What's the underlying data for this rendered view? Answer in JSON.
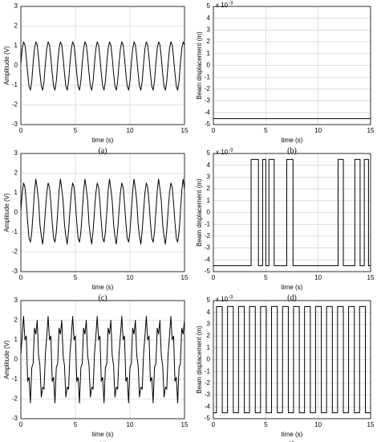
{
  "chart_data": [
    {
      "type": "line",
      "caption": "(a)",
      "x_label": "time (s)",
      "y_label": "Amplitude (V)",
      "xlim": [
        0,
        15
      ],
      "xticks": [
        0,
        5,
        10,
        15
      ],
      "ylim": [
        -3,
        3
      ],
      "yticks": [
        -3,
        -2,
        -1,
        0,
        1,
        2,
        3
      ],
      "grid": true,
      "x": [
        0,
        0.125,
        0.25,
        0.375,
        0.5,
        0.625,
        0.75,
        0.875,
        1,
        1.125,
        1.25,
        1.375,
        1.5,
        1.625,
        1.75,
        1.875,
        2,
        2.125,
        2.25,
        2.375,
        2.5,
        2.625,
        2.75,
        2.875,
        3,
        3.125,
        3.25,
        3.375,
        3.5,
        3.625,
        3.75,
        3.875,
        4,
        4.125,
        4.25,
        4.375,
        4.5,
        4.625,
        4.75,
        4.875,
        5,
        5.125,
        5.25,
        5.375,
        5.5,
        5.625,
        5.75,
        5.875,
        6,
        6.125,
        6.25,
        6.375,
        6.5,
        6.625,
        6.75,
        6.875,
        7,
        7.125,
        7.25,
        7.375,
        7.5,
        7.625,
        7.75,
        7.875,
        8,
        8.125,
        8.25,
        8.375,
        8.5,
        8.625,
        8.75,
        8.875,
        9,
        9.125,
        9.25,
        9.375,
        9.5,
        9.625,
        9.75,
        9.875,
        10,
        10.125,
        10.25,
        10.375,
        10.5,
        10.625,
        10.75,
        10.875,
        11,
        11.125,
        11.25,
        11.375,
        11.5,
        11.625,
        11.75,
        11.875,
        12,
        12.125,
        12.25,
        12.375,
        12.5,
        12.625,
        12.75,
        12.875,
        13,
        13.125,
        13.25,
        13.375,
        13.5,
        13.625,
        13.75,
        13.875,
        14,
        14.125,
        14.25,
        14.375,
        14.5,
        14.625,
        14.75,
        14.875,
        15
      ],
      "series": [
        {
          "color": "#000000",
          "values": [
            0.1,
            0.85,
            1.2,
            1.05,
            0.4,
            -0.4,
            -1.05,
            -1.25,
            -0.8,
            0.1,
            0.85,
            1.2,
            1.05,
            0.4,
            -0.4,
            -1.05,
            -1.25,
            -0.8,
            0.1,
            0.85,
            1.2,
            1.05,
            0.4,
            -0.4,
            -1.05,
            -1.25,
            -0.8,
            0.1,
            0.85,
            1.2,
            1.05,
            0.4,
            -0.4,
            -1.05,
            -1.25,
            -0.8,
            0.1,
            0.85,
            1.2,
            1.05,
            0.4,
            -0.4,
            -1.05,
            -1.25,
            -0.8,
            0.1,
            0.85,
            1.2,
            1.05,
            0.4,
            -0.4,
            -1.05,
            -1.25,
            -0.8,
            0.1,
            0.85,
            1.2,
            1.05,
            0.4,
            -0.4,
            -1.05,
            -1.25,
            -0.8,
            0.1,
            0.85,
            1.2,
            1.05,
            0.4,
            -0.4,
            -1.05,
            -1.25,
            -0.8,
            0.1,
            0.85,
            1.2,
            1.05,
            0.4,
            -0.4,
            -1.05,
            -1.25,
            -0.8,
            0.1,
            0.85,
            1.2,
            1.05,
            0.4,
            -0.4,
            -1.05,
            -1.25,
            -0.8,
            0.1,
            0.85,
            1.2,
            1.05,
            0.4,
            -0.4,
            -1.05,
            -1.25,
            -0.8,
            0.1,
            0.85,
            1.2,
            1.05,
            0.4,
            -0.4,
            -1.05,
            -1.25,
            -0.8,
            0.1,
            0.85,
            1.2,
            1.05,
            0.4,
            -0.4,
            -1.05,
            -1.25,
            -0.8,
            0.1,
            0.85,
            1.2,
            1.05
          ]
        }
      ]
    },
    {
      "type": "line",
      "caption": "(b)",
      "x_label": "time (s)",
      "y_label": "Beam displacement (m)",
      "y_multiplier": "x 10",
      "y_multiplier_exp": "-3",
      "xlim": [
        0,
        15
      ],
      "xticks": [
        0,
        5,
        10,
        15
      ],
      "ylim": [
        -5,
        5
      ],
      "yticks": [
        -5,
        -4,
        -3,
        -2,
        -1,
        0,
        1,
        2,
        3,
        4,
        5
      ],
      "grid": true,
      "x": [
        0,
        15
      ],
      "series": [
        {
          "color": "#000000",
          "values": [
            -4.5,
            -4.5
          ]
        }
      ]
    },
    {
      "type": "line",
      "caption": "(c)",
      "x_label": "time (s)",
      "y_label": "Amplitude (V)",
      "xlim": [
        0,
        15
      ],
      "xticks": [
        0,
        5,
        10,
        15
      ],
      "ylim": [
        -3,
        3
      ],
      "yticks": [
        -3,
        -2,
        -1,
        0,
        1,
        2,
        3
      ],
      "grid": true,
      "x": [
        0,
        0.125,
        0.25,
        0.375,
        0.5,
        0.625,
        0.75,
        0.875,
        1,
        1.125,
        1.25,
        1.375,
        1.5,
        1.625,
        1.75,
        1.875,
        2,
        2.125,
        2.25,
        2.375,
        2.5,
        2.625,
        2.75,
        2.875,
        3,
        3.125,
        3.25,
        3.375,
        3.5,
        3.625,
        3.75,
        3.875,
        4,
        4.125,
        4.25,
        4.375,
        4.5,
        4.625,
        4.75,
        4.875,
        5,
        5.125,
        5.25,
        5.375,
        5.5,
        5.625,
        5.75,
        5.875,
        6,
        6.125,
        6.25,
        6.375,
        6.5,
        6.625,
        6.75,
        6.875,
        7,
        7.125,
        7.25,
        7.375,
        7.5,
        7.625,
        7.75,
        7.875,
        8,
        8.125,
        8.25,
        8.375,
        8.5,
        8.625,
        8.75,
        8.875,
        9,
        9.125,
        9.25,
        9.375,
        9.5,
        9.625,
        9.75,
        9.875,
        10,
        10.125,
        10.25,
        10.375,
        10.5,
        10.625,
        10.75,
        10.875,
        11,
        11.125,
        11.25,
        11.375,
        11.5,
        11.625,
        11.75,
        11.875,
        12,
        12.125,
        12.25,
        12.375,
        12.5,
        12.625,
        12.75,
        12.875,
        13,
        13.125,
        13.25,
        13.375,
        13.5,
        13.625,
        13.75,
        13.875,
        14,
        14.125,
        14.25,
        14.375,
        14.5,
        14.625,
        14.75,
        14.875,
        15
      ],
      "series": [
        {
          "color": "#000000",
          "values": [
            0.1,
            1.0,
            1.5,
            1.3,
            0.5,
            -0.5,
            -1.3,
            -1.5,
            -1.0,
            0.0,
            1.1,
            1.7,
            1.2,
            0.6,
            -0.6,
            -1.2,
            -1.6,
            -0.9,
            0.1,
            1.0,
            1.5,
            1.3,
            0.5,
            -0.5,
            -1.3,
            -1.5,
            -1.0,
            0.0,
            1.1,
            1.7,
            1.2,
            0.6,
            -0.6,
            -1.2,
            -1.6,
            -0.9,
            0.1,
            1.0,
            1.5,
            1.3,
            0.5,
            -0.5,
            -1.3,
            -1.5,
            -1.0,
            0.0,
            1.1,
            1.7,
            1.2,
            0.6,
            -0.6,
            -1.2,
            -1.6,
            -0.9,
            0.1,
            1.0,
            1.5,
            1.3,
            0.5,
            -0.5,
            -1.3,
            -1.5,
            -1.0,
            0.0,
            1.1,
            1.7,
            1.2,
            0.6,
            -0.6,
            -1.2,
            -1.6,
            -0.9,
            0.1,
            1.0,
            1.5,
            1.3,
            0.5,
            -0.5,
            -1.3,
            -1.5,
            -1.0,
            0.0,
            1.1,
            1.7,
            1.2,
            0.6,
            -0.6,
            -1.2,
            -1.6,
            -0.9,
            0.1,
            1.0,
            1.5,
            1.3,
            0.5,
            -0.5,
            -1.3,
            -1.5,
            -1.0,
            0.0,
            1.1,
            1.7,
            1.2,
            0.6,
            -0.6,
            -1.2,
            -1.6,
            -0.9,
            0.1,
            1.0,
            1.5,
            1.3,
            0.5,
            -0.5,
            -1.3,
            -1.5,
            -1.0,
            0.0,
            1.1,
            1.7,
            1.2
          ]
        }
      ]
    },
    {
      "type": "line",
      "caption": "(d)",
      "x_label": "time (s)",
      "y_label": "Beam displacement (m)",
      "y_multiplier": "x 10",
      "y_multiplier_exp": "-3",
      "xlim": [
        0,
        15
      ],
      "xticks": [
        0,
        5,
        10,
        15
      ],
      "ylim": [
        -5,
        5
      ],
      "yticks": [
        -5,
        -4,
        -3,
        -2,
        -1,
        0,
        1,
        2,
        3,
        4,
        5
      ],
      "grid": true,
      "x": [
        0,
        3.6,
        3.6,
        4.3,
        4.3,
        4.7,
        4.7,
        5.0,
        5.0,
        5.3,
        5.3,
        5.8,
        5.8,
        7.0,
        7.0,
        7.6,
        7.6,
        11.9,
        11.9,
        12.4,
        12.4,
        13.5,
        13.5,
        14.0,
        14.0,
        14.4,
        14.4,
        14.8,
        14.8,
        15
      ],
      "series": [
        {
          "color": "#000000",
          "values": [
            -4.5,
            -4.5,
            4.5,
            4.5,
            -4.5,
            -4.5,
            4.5,
            4.5,
            -4.5,
            -4.5,
            4.5,
            4.5,
            -4.5,
            -4.5,
            4.5,
            4.5,
            -4.5,
            -4.5,
            4.5,
            4.5,
            -4.5,
            -4.5,
            4.5,
            4.5,
            -4.5,
            -4.5,
            4.5,
            4.5,
            -4.5,
            -4.5
          ]
        }
      ]
    },
    {
      "type": "line",
      "caption": "(e)",
      "x_label": "time (s)",
      "y_label": "Amplitude (V)",
      "xlim": [
        0,
        15
      ],
      "xticks": [
        0,
        5,
        10,
        15
      ],
      "ylim": [
        -3,
        3
      ],
      "yticks": [
        -3,
        -2,
        -1,
        0,
        1,
        2,
        3
      ],
      "grid": true,
      "x": [
        0,
        0.125,
        0.25,
        0.375,
        0.5,
        0.625,
        0.75,
        0.875,
        1,
        1.125,
        1.25,
        1.375,
        1.5,
        1.625,
        1.75,
        1.875,
        2,
        2.125,
        2.25,
        2.375,
        2.5,
        2.625,
        2.75,
        2.875,
        3,
        3.125,
        3.25,
        3.375,
        3.5,
        3.625,
        3.75,
        3.875,
        4,
        4.125,
        4.25,
        4.375,
        4.5,
        4.625,
        4.75,
        4.875,
        5,
        5.125,
        5.25,
        5.375,
        5.5,
        5.625,
        5.75,
        5.875,
        6,
        6.125,
        6.25,
        6.375,
        6.5,
        6.625,
        6.75,
        6.875,
        7,
        7.125,
        7.25,
        7.375,
        7.5,
        7.625,
        7.75,
        7.875,
        8,
        8.125,
        8.25,
        8.375,
        8.5,
        8.625,
        8.75,
        8.875,
        9,
        9.125,
        9.25,
        9.375,
        9.5,
        9.625,
        9.75,
        9.875,
        10,
        10.125,
        10.25,
        10.375,
        10.5,
        10.625,
        10.75,
        10.875,
        11,
        11.125,
        11.25,
        11.375,
        11.5,
        11.625,
        11.75,
        11.875,
        12,
        12.125,
        12.25,
        12.375,
        12.5,
        12.625,
        12.75,
        12.875,
        13,
        13.125,
        13.25,
        13.375,
        13.5,
        13.625,
        13.75,
        13.875,
        14,
        14.125,
        14.25,
        14.375,
        14.5,
        14.625,
        14.75,
        14.875,
        15
      ],
      "series": [
        {
          "color": "#000000",
          "values": [
            0.3,
            1.2,
            2.2,
            1.0,
            1.2,
            -1.1,
            -0.9,
            -2.2,
            -0.4,
            -0.2,
            1.6,
            1.3,
            2.0,
            0.2,
            -0.3,
            -1.9,
            -1.4,
            -1.5,
            0.3,
            1.2,
            2.2,
            1.0,
            1.2,
            -1.1,
            -0.9,
            -2.2,
            -0.4,
            -0.2,
            1.6,
            1.3,
            2.0,
            0.2,
            -0.3,
            -1.9,
            -1.4,
            -1.5,
            0.3,
            1.2,
            2.2,
            1.0,
            1.2,
            -1.1,
            -0.9,
            -2.2,
            -0.4,
            -0.2,
            1.6,
            1.3,
            2.0,
            0.2,
            -0.3,
            -1.9,
            -1.4,
            -1.5,
            0.3,
            1.2,
            2.2,
            1.0,
            1.2,
            -1.1,
            -0.9,
            -2.2,
            -0.4,
            -0.2,
            1.6,
            1.3,
            2.0,
            0.2,
            -0.3,
            -1.9,
            -1.4,
            -1.5,
            0.3,
            1.2,
            2.2,
            1.0,
            1.2,
            -1.1,
            -0.9,
            -2.2,
            -0.4,
            -0.2,
            1.6,
            1.3,
            2.0,
            0.2,
            -0.3,
            -1.9,
            -1.4,
            -1.5,
            0.3,
            1.2,
            2.2,
            1.0,
            1.2,
            -1.1,
            -0.9,
            -2.2,
            -0.4,
            -0.2,
            1.6,
            1.3,
            2.0,
            0.2,
            -0.3,
            -1.9,
            -1.4,
            -1.5,
            0.3,
            1.2,
            2.2,
            1.0,
            1.2,
            -1.1,
            -0.9,
            -2.2,
            -0.4,
            -0.2,
            1.6,
            1.3,
            2.0
          ]
        }
      ]
    },
    {
      "type": "line",
      "caption": "(f)",
      "x_label": "time (s)",
      "y_label": "Beam displacement (m)",
      "y_multiplier": "x 10",
      "y_multiplier_exp": "-3",
      "xlim": [
        0,
        15
      ],
      "xticks": [
        0,
        5,
        10,
        15
      ],
      "ylim": [
        -5,
        5
      ],
      "yticks": [
        -5,
        -4,
        -3,
        -2,
        -1,
        0,
        1,
        2,
        3,
        4,
        5
      ],
      "grid": true,
      "x": [
        0,
        0.3,
        0.3,
        0.85,
        0.85,
        1.35,
        1.35,
        1.9,
        1.9,
        2.4,
        2.4,
        2.95,
        2.95,
        3.45,
        3.45,
        4.0,
        4.0,
        4.5,
        4.5,
        5.05,
        5.05,
        5.55,
        5.55,
        6.1,
        6.1,
        6.6,
        6.6,
        7.15,
        7.15,
        7.65,
        7.65,
        8.2,
        8.2,
        8.7,
        8.7,
        9.25,
        9.25,
        9.75,
        9.75,
        10.3,
        10.3,
        10.8,
        10.8,
        11.35,
        11.35,
        11.85,
        11.85,
        12.4,
        12.4,
        12.9,
        12.9,
        13.45,
        13.45,
        13.95,
        13.95,
        14.5,
        14.5,
        15
      ],
      "series": [
        {
          "color": "#000000",
          "values": [
            -4.5,
            -4.5,
            4.5,
            4.5,
            -4.5,
            -4.5,
            4.5,
            4.5,
            -4.5,
            -4.5,
            4.5,
            4.5,
            -4.5,
            -4.5,
            4.5,
            4.5,
            -4.5,
            -4.5,
            4.5,
            4.5,
            -4.5,
            -4.5,
            4.5,
            4.5,
            -4.5,
            -4.5,
            4.5,
            4.5,
            -4.5,
            -4.5,
            4.5,
            4.5,
            -4.5,
            -4.5,
            4.5,
            4.5,
            -4.5,
            -4.5,
            4.5,
            4.5,
            -4.5,
            -4.5,
            4.5,
            4.5,
            -4.5,
            -4.5,
            4.5,
            4.5,
            -4.5,
            -4.5,
            4.5,
            4.5,
            -4.5,
            -4.5,
            4.5,
            4.5,
            -4.5,
            -4.5
          ]
        }
      ]
    }
  ]
}
